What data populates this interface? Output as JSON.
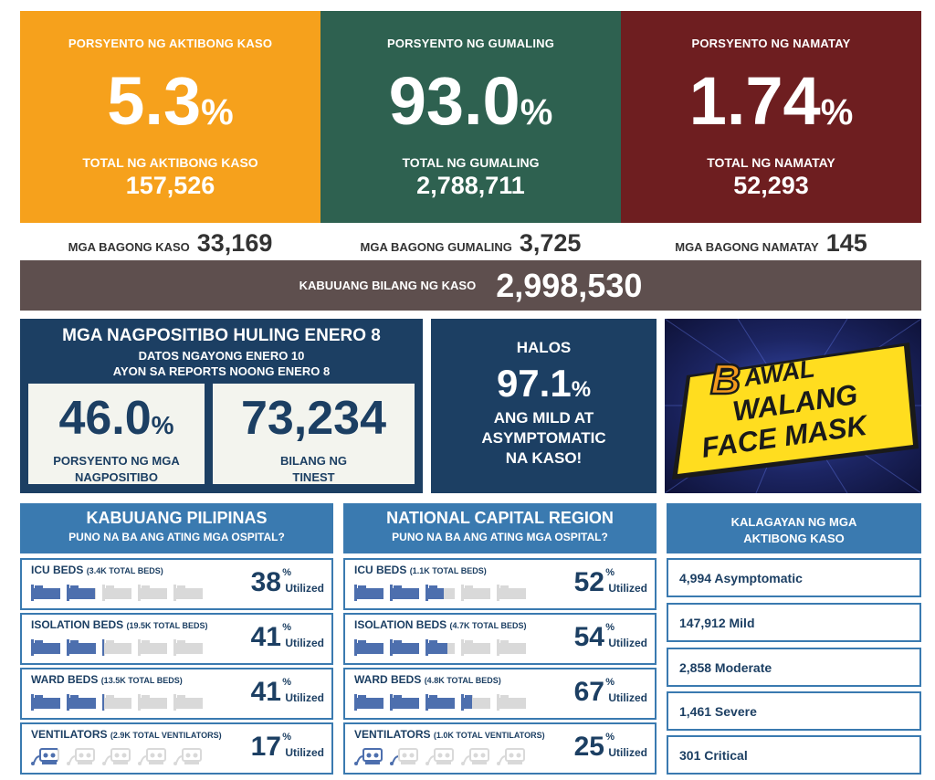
{
  "top": {
    "active": {
      "label": "PORSYENTO NG AKTIBONG KASO",
      "pct": "5.3",
      "pct_sign": "%",
      "sub": "TOTAL NG AKTIBONG KASO",
      "total": "157,526",
      "color": "#f6a11c"
    },
    "recovered": {
      "label": "PORSYENTO NG GUMALING",
      "pct": "93.0",
      "pct_sign": "%",
      "sub": "TOTAL NG GUMALING",
      "total": "2,788,711",
      "color": "#2e6150"
    },
    "deaths": {
      "label": "PORSYENTO NG NAMATAY",
      "pct": "1.74",
      "pct_sign": "%",
      "sub": "TOTAL NG NAMATAY",
      "total": "52,293",
      "color": "#6e1e20"
    }
  },
  "new": {
    "cases": {
      "label": "MGA BAGONG KASO",
      "value": "33,169"
    },
    "recovered": {
      "label": "MGA BAGONG GUMALING",
      "value": "3,725"
    },
    "deaths": {
      "label": "MGA BAGONG NAMATAY",
      "value": "145"
    }
  },
  "total_cases": {
    "label": "KABUUANG BILANG NG KASO",
    "value": "2,998,530"
  },
  "positivity": {
    "title": "MGA NAGPOSITIBO HULING ENERO 8",
    "sub1": "DATOS NGAYONG ENERO 10",
    "sub2": "AYON SA REPORTS NOONG ENERO 8",
    "rate": {
      "value": "46.0",
      "pct_sign": "%",
      "cap1": "PORSYENTO NG MGA",
      "cap2": "NAGPOSITIBO"
    },
    "tested": {
      "value": "73,234",
      "cap1": "BILANG NG",
      "cap2": "TINEST"
    }
  },
  "mild": {
    "halos": "HALOS",
    "pct": "97.1",
    "pct_sign": "%",
    "cap1": "ANG MILD AT",
    "cap2": "ASYMPTOMATIC",
    "cap3": "NA KASO!"
  },
  "mask": {
    "b": "B",
    "line1": "AWAL",
    "line2": "WALANG",
    "line3": "FACE MASK"
  },
  "utilized_label": "Utilized",
  "pct_symbol": "%",
  "ph": {
    "title": "KABUUANG PILIPINAS",
    "sub": "PUNO NA BA ANG ATING MGA OSPITAL?",
    "rows": [
      {
        "label": "ICU BEDS",
        "detail": "(3.4K TOTAL BEDS)",
        "value": 38,
        "icon": "bed-icon"
      },
      {
        "label": "ISOLATION BEDS",
        "detail": "(19.5K TOTAL BEDS)",
        "value": 41,
        "icon": "bed-icon"
      },
      {
        "label": "WARD BEDS",
        "detail": "(13.5K TOTAL BEDS)",
        "value": 41,
        "icon": "bed-icon"
      },
      {
        "label": "VENTILATORS",
        "detail": "(2.9K TOTAL VENTILATORS)",
        "value": 17,
        "icon": "ventilator-icon"
      }
    ]
  },
  "ncr": {
    "title": "NATIONAL CAPITAL REGION",
    "sub": "PUNO NA BA ANG ATING MGA OSPITAL?",
    "rows": [
      {
        "label": "ICU BEDS",
        "detail": "(1.1K TOTAL BEDS)",
        "value": 52,
        "icon": "bed-icon"
      },
      {
        "label": "ISOLATION BEDS",
        "detail": "(4.7K TOTAL BEDS)",
        "value": 54,
        "icon": "bed-icon"
      },
      {
        "label": "WARD BEDS",
        "detail": "(4.8K TOTAL BEDS)",
        "value": 67,
        "icon": "bed-icon"
      },
      {
        "label": "VENTILATORS",
        "detail": "(1.0K TOTAL VENTILATORS)",
        "value": 25,
        "icon": "ventilator-icon"
      }
    ]
  },
  "status": {
    "title1": "KALAGAYAN NG MGA",
    "title2": "AKTIBONG KASO",
    "items": [
      "4,994 Asymptomatic",
      "147,912 Mild",
      "2,858 Moderate",
      "1,461 Severe",
      "301 Critical"
    ]
  },
  "colors": {
    "navy": "#1c3f63",
    "section_blue": "#3a7ab0",
    "filled_bed": "#4d6fae",
    "empty_bed": "#d9d9d9",
    "total_bar": "#5e4f4e",
    "mask_yellow": "#ffdd1f",
    "mask_orange": "#f39a1c"
  }
}
